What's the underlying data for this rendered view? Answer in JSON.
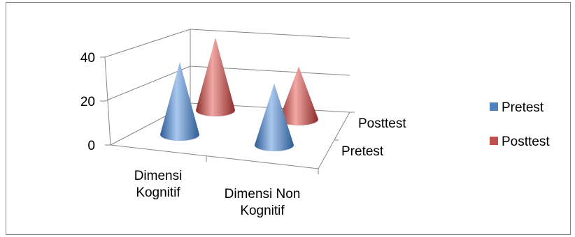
{
  "chart_data": {
    "type": "cone-3d",
    "categories": [
      "Dimensi Kognitif",
      "Dimensi Non Kognitif"
    ],
    "series": [
      {
        "name": "Pretest",
        "values": [
          33,
          28
        ],
        "color": "#4F81BD"
      },
      {
        "name": "Posttest",
        "values": [
          33,
          24
        ],
        "color": "#C0504D"
      }
    ],
    "depth_labels": [
      "Pretest",
      "Posttest"
    ],
    "y_ticks": [
      "0",
      "20",
      "40"
    ],
    "ylim": [
      0,
      40
    ],
    "grid": true,
    "legend": "right"
  }
}
